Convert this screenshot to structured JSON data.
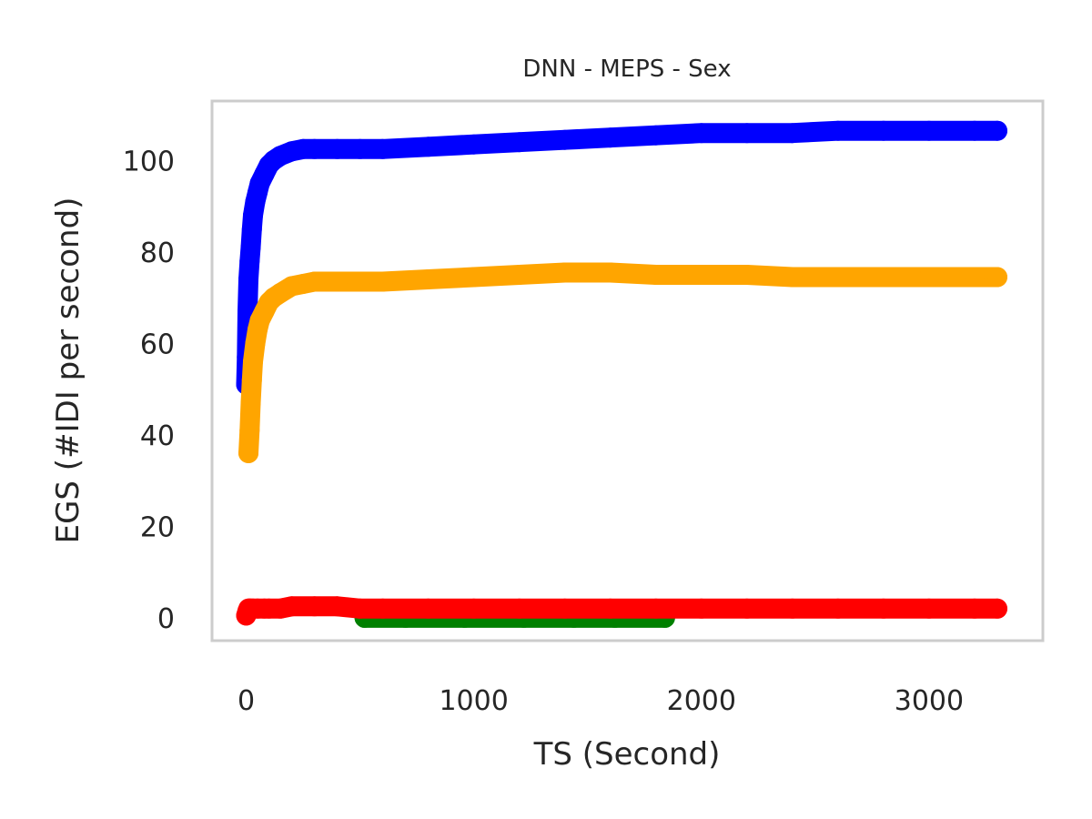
{
  "chart_data": {
    "type": "scatter",
    "title": "DNN - MEPS - Sex",
    "xlabel": "TS (Second)",
    "ylabel": "EGS (#IDI  per second)",
    "xlim": [
      -150,
      3500
    ],
    "ylim": [
      -5,
      113
    ],
    "xticks": [
      0,
      1000,
      2000,
      3000
    ],
    "yticks": [
      0,
      20,
      40,
      60,
      80,
      100
    ],
    "grid": false,
    "series": [
      {
        "color": "#0000ff",
        "x": [
          0,
          3,
          6,
          10,
          15,
          20,
          25,
          30,
          40,
          50,
          60,
          80,
          100,
          120,
          150,
          200,
          250,
          300,
          400,
          500,
          600,
          800,
          1000,
          1200,
          1400,
          1600,
          1800,
          2000,
          2200,
          2400,
          2600,
          2800,
          3000,
          3200,
          3300
        ],
        "y": [
          51,
          57,
          67,
          74,
          78,
          81,
          85,
          88,
          91,
          93,
          95,
          97,
          99,
          100,
          101,
          102,
          102.5,
          102.5,
          102.5,
          102.5,
          102.5,
          103,
          103.5,
          104,
          104.5,
          105,
          105.5,
          106,
          106,
          106,
          106.5,
          106.5,
          106.5,
          106.5,
          106.5
        ]
      },
      {
        "color": "#ffa500",
        "x": [
          10,
          15,
          20,
          25,
          30,
          40,
          50,
          60,
          80,
          100,
          120,
          150,
          200,
          250,
          300,
          400,
          500,
          600,
          800,
          1000,
          1200,
          1400,
          1600,
          1800,
          2000,
          2200,
          2400,
          2600,
          2800,
          3000,
          3200,
          3300
        ],
        "y": [
          36,
          41,
          47,
          52,
          56,
          60,
          63,
          65,
          67,
          69,
          70,
          71,
          72.5,
          73,
          73.5,
          73.5,
          73.5,
          73.5,
          74,
          74.5,
          75,
          75.5,
          75.5,
          75,
          75,
          75,
          74.5,
          74.5,
          74.5,
          74.5,
          74.5,
          74.5
        ]
      },
      {
        "color": "#008000",
        "x": [
          520,
          700,
          960,
          1220,
          1440,
          1620,
          1840
        ],
        "y": [
          0,
          0,
          0,
          0,
          0,
          0,
          0
        ]
      },
      {
        "color": "#ff0000",
        "x": [
          0,
          3,
          6,
          10,
          15,
          20,
          30,
          50,
          80,
          100,
          150,
          200,
          300,
          400,
          500,
          600,
          800,
          1000,
          1200,
          1400,
          1600,
          1800,
          2000,
          2200,
          2400,
          2600,
          2800,
          3000,
          3200,
          3300
        ],
        "y": [
          0.5,
          1,
          1.5,
          2,
          2,
          2,
          2,
          2,
          2,
          2,
          2,
          2.5,
          2.5,
          2.5,
          2,
          2,
          2,
          2,
          2,
          2,
          2,
          2,
          2,
          2,
          2,
          2,
          2,
          2,
          2,
          2
        ]
      }
    ]
  }
}
